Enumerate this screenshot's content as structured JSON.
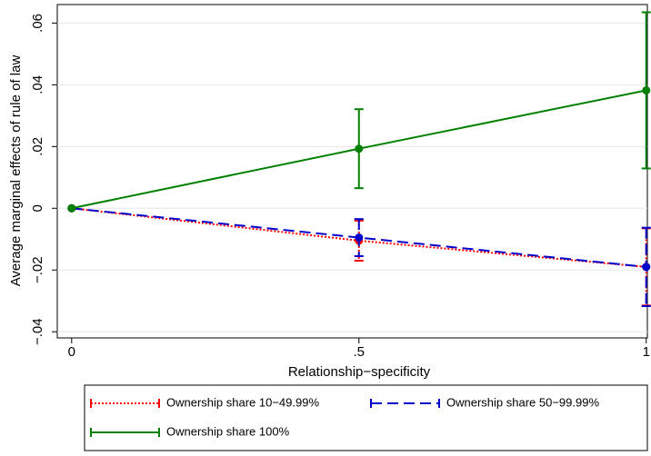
{
  "chart_data": {
    "type": "line",
    "ylabel": "Average marginal effects of rule of law",
    "xlabel": "Relationship−specificity",
    "x": [
      0,
      0.5,
      1
    ],
    "xlim": [
      -0.025,
      1.002
    ],
    "xticks": [
      0,
      {
        "value": 0.5,
        "label": ".5"
      },
      1
    ],
    "ylim": [
      -0.042,
      0.066
    ],
    "yticks": [
      {
        "value": -0.04,
        "label": "−.04"
      },
      {
        "value": -0.02,
        "label": "−.02"
      },
      0,
      {
        "value": 0.02,
        "label": ".02"
      },
      {
        "value": 0.04,
        "label": ".04"
      },
      {
        "value": 0.06,
        "label": ".06"
      }
    ],
    "grid": true,
    "legend": "bottom",
    "series": [
      {
        "name": "Ownership share 10−49.99%",
        "color": "#ff0000",
        "line_style": "dot",
        "values": [
          0,
          -0.0105,
          -0.019
        ],
        "errors": [
          null,
          0.0065,
          0.0125
        ]
      },
      {
        "name": "Ownership share 50−99.99%",
        "color": "#0000cc",
        "line_style": "dash",
        "values": [
          0,
          -0.0095,
          -0.019
        ],
        "errors": [
          null,
          0.006,
          0.0127
        ]
      },
      {
        "name": "Ownership share 100%",
        "color": "#008000",
        "line_style": "solid",
        "values": [
          0,
          0.0193,
          0.0382
        ],
        "errors": [
          null,
          0.0128,
          0.0253
        ]
      }
    ]
  }
}
